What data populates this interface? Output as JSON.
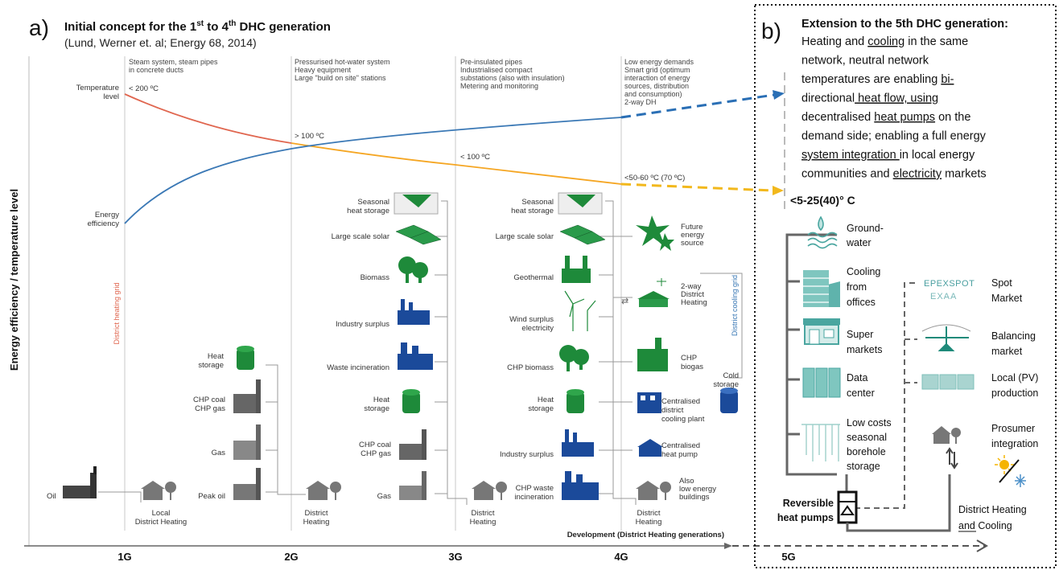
{
  "panel_a": {
    "letter": "a)",
    "title_pre": "Initial concept for the 1",
    "title_sup1": "st",
    "title_mid": " to 4",
    "title_sup2": "th",
    "title_post": " DHC generation",
    "citation": "(Lund, Werner et. al; Energy 68, 2014)",
    "y_axis_label": "Energy efficiency / temperature level",
    "x_axis_label": "Development (District Heating generations)",
    "generations": [
      "1G",
      "2G",
      "3G",
      "4G",
      "5G"
    ],
    "gen_notes": [
      [
        "Steam system, steam pipes",
        "in concrete ducts"
      ],
      [
        "Pressurised hot-water system",
        "Heavy equipment",
        "Large \"build on site\" stations"
      ],
      [
        "Pre-insulated pipes",
        "Industrialised compact",
        "substations (also with insulation)",
        "Metering and monitoring"
      ],
      [
        "Low energy demands",
        "Smart grid (optimum",
        "interaction of energy",
        "sources, distribution",
        "and consumption)",
        "2-way DH"
      ]
    ],
    "temp_level": [
      "Temperature",
      "level"
    ],
    "energy_eff": [
      "Energy",
      "efficiency"
    ],
    "temps": [
      "< 200 ºC",
      "> 100 ºC",
      "< 100 ºC",
      "<50-60 ºC (70 ºC)"
    ],
    "district_heating_grid": "District heating grid",
    "district_cooling_grid": "District cooling grid",
    "g1": {
      "oil": "Oil",
      "dh": [
        "Local",
        "District Heating"
      ]
    },
    "g2": {
      "heat_storage": [
        "Heat",
        "storage"
      ],
      "chp": [
        "CHP coal",
        "CHP gas"
      ],
      "gas": "Gas",
      "peak_oil": "Peak oil",
      "dh": [
        "District",
        "Heating"
      ]
    },
    "g3": {
      "seasonal": [
        "Seasonal",
        "heat storage"
      ],
      "solar": "Large scale solar",
      "biomass": "Biomass",
      "industry": "Industry surplus",
      "waste": "Waste incineration",
      "heat_storage": [
        "Heat",
        "storage"
      ],
      "chp": [
        "CHP coal",
        "CHP gas"
      ],
      "gas": "Gas",
      "dh": [
        "District",
        "Heating"
      ]
    },
    "g4": {
      "seasonal": [
        "Seasonal",
        "heat storage"
      ],
      "solar": "Large scale solar",
      "geothermal": "Geothermal",
      "wind": [
        "Wind surplus",
        "electricity"
      ],
      "chp_bio": "CHP biomass",
      "heat_storage": [
        "Heat",
        "storage"
      ],
      "industry": "Industry surplus",
      "chp_waste": [
        "CHP waste",
        "incineration"
      ],
      "dh": [
        "District",
        "Heating"
      ],
      "future": [
        "Future",
        "energy",
        "source"
      ],
      "two_way": [
        "2-way",
        "District",
        "Heating"
      ],
      "chp_biogas": [
        "CHP",
        "biogas"
      ],
      "central_cooling": [
        "Centralised",
        "district",
        "cooling plant"
      ],
      "central_hp": [
        "Centralised",
        "heat pump"
      ],
      "low_energy": [
        "Also",
        "low energy",
        "buildings"
      ],
      "cold_storage": [
        "Cold",
        "storage"
      ]
    }
  },
  "panel_b": {
    "letter": "b)",
    "title": "Extension to the 5th DHC generation:",
    "desc_lines": [
      [
        "Heating and ",
        "cooling",
        " in the same"
      ],
      [
        "network, neutral network",
        "",
        ""
      ],
      [
        "temperatures are enabling ",
        "bi-",
        ""
      ],
      [
        "directional",
        " heat flow, using",
        ""
      ],
      [
        "decentralised ",
        "heat pumps",
        " on the"
      ],
      [
        "demand side; enabling a full energy",
        "",
        ""
      ],
      [
        "system integration ",
        "",
        "in local energy"
      ],
      [
        "communities and ",
        "electricity",
        " markets"
      ]
    ],
    "temp": "<5-25(40)°  C",
    "sources": [
      [
        "Ground-",
        "water"
      ],
      [
        "Cooling",
        "from",
        "offices"
      ],
      [
        "Super",
        "markets"
      ],
      [
        "Data",
        "center"
      ],
      [
        "Low costs",
        "seasonal",
        "borehole",
        "storage"
      ]
    ],
    "markets": [
      [
        "Spot",
        "Market"
      ],
      [
        "Balancing",
        "market"
      ],
      [
        "Local (PV)",
        "production"
      ],
      [
        "Prosumer",
        "integration"
      ]
    ],
    "epex": [
      "EPEXSPOT",
      "EXAA"
    ],
    "hp_label": [
      "Reversible",
      "heat pumps"
    ],
    "dhc_label": [
      "District Heating",
      "and Cooling"
    ],
    "dhc_underline": "and"
  },
  "colors": {
    "red_line": "#e0664f",
    "orange_line": "#f5a623",
    "blue_line": "#3a78b5",
    "green": "#1e8a3a",
    "navy": "#1b4a9a",
    "gray_icon": "#555555",
    "teal": "#4aa6a0"
  }
}
